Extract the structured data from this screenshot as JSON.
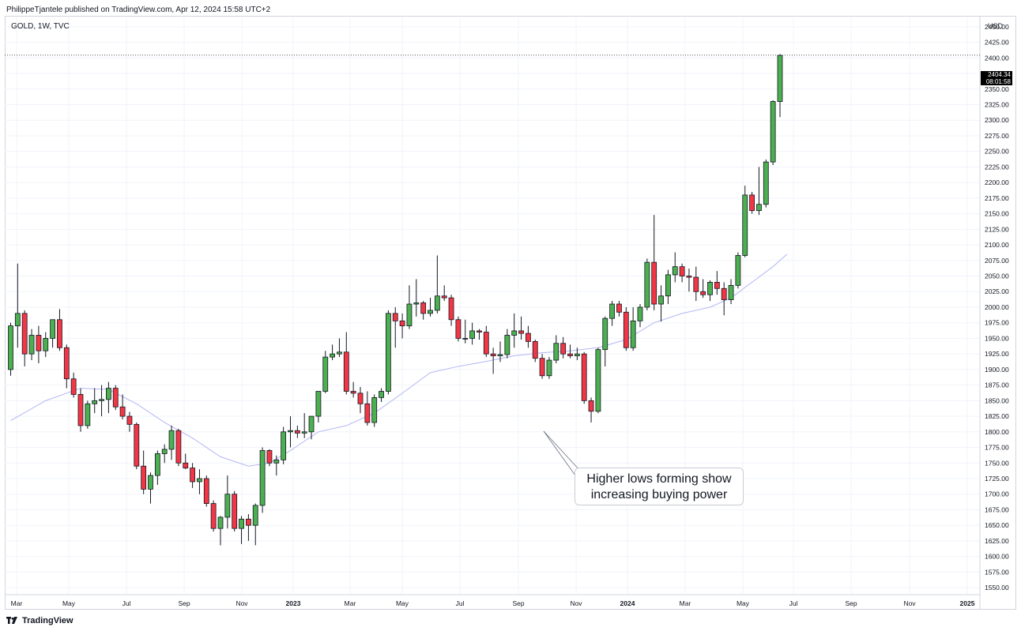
{
  "header": {
    "published": "PhilippeTjantele published on TradingView.com, Apr 12, 2024 15:58 UTC+2",
    "symbol": "GOLD, 1W, TVC",
    "currency": "USD"
  },
  "price_tag": {
    "price": "2404.34",
    "countdown": "08:01:58"
  },
  "annotation": {
    "line1": "Higher lows forming show",
    "line2": "increasing buying power"
  },
  "footer": {
    "brand": "TradingView"
  },
  "colors": {
    "up": "#4caf50",
    "down": "#f23645",
    "wick": "#131722",
    "ma": "#b3b7f5",
    "grid": "#f0f3fa"
  },
  "chart_data": {
    "type": "candlestick",
    "symbol": "GOLD",
    "interval": "1W",
    "source": "TVC",
    "currency": "USD",
    "x_ticks": [
      "Mar",
      "May",
      "Jul",
      "Sep",
      "Nov",
      "2023",
      "Mar",
      "May",
      "Jul",
      "Sep",
      "Nov",
      "2024",
      "Mar",
      "May",
      "Jul",
      "Sep",
      "Nov",
      "2025"
    ],
    "y_ticks": [
      "2450.00",
      "2425.00",
      "2400.00",
      "2375.00",
      "2350.00",
      "2325.00",
      "2300.00",
      "2275.00",
      "2250.00",
      "2225.00",
      "2200.00",
      "2175.00",
      "2150.00",
      "2125.00",
      "2100.00",
      "2075.00",
      "2050.00",
      "2025.00",
      "2000.00",
      "1975.00",
      "1950.00",
      "1925.00",
      "1900.00",
      "1875.00",
      "1850.00",
      "1825.00",
      "1800.00",
      "1775.00",
      "1750.00",
      "1725.00",
      "1700.00",
      "1675.00",
      "1650.00",
      "1625.00",
      "1600.00",
      "1575.00",
      "1550.00"
    ],
    "ylim": [
      1540,
      2465
    ],
    "last_price": 2404.34,
    "candles": [
      {
        "o": 1900,
        "h": 1975,
        "l": 1890,
        "c": 1970
      },
      {
        "o": 1970,
        "h": 2070,
        "l": 1935,
        "c": 1990
      },
      {
        "o": 1990,
        "h": 1995,
        "l": 1905,
        "c": 1925
      },
      {
        "o": 1925,
        "h": 1965,
        "l": 1915,
        "c": 1955
      },
      {
        "o": 1955,
        "h": 1970,
        "l": 1910,
        "c": 1930
      },
      {
        "o": 1930,
        "h": 1960,
        "l": 1920,
        "c": 1950
      },
      {
        "o": 1950,
        "h": 1980,
        "l": 1935,
        "c": 1980
      },
      {
        "o": 1980,
        "h": 1997,
        "l": 1930,
        "c": 1935
      },
      {
        "o": 1935,
        "h": 1940,
        "l": 1870,
        "c": 1885
      },
      {
        "o": 1885,
        "h": 1895,
        "l": 1855,
        "c": 1860
      },
      {
        "o": 1860,
        "h": 1870,
        "l": 1800,
        "c": 1810
      },
      {
        "o": 1810,
        "h": 1850,
        "l": 1805,
        "c": 1845
      },
      {
        "o": 1845,
        "h": 1870,
        "l": 1830,
        "c": 1850
      },
      {
        "o": 1850,
        "h": 1875,
        "l": 1825,
        "c": 1852
      },
      {
        "o": 1852,
        "h": 1880,
        "l": 1830,
        "c": 1870
      },
      {
        "o": 1870,
        "h": 1875,
        "l": 1835,
        "c": 1840
      },
      {
        "o": 1840,
        "h": 1860,
        "l": 1820,
        "c": 1825
      },
      {
        "o": 1825,
        "h": 1832,
        "l": 1800,
        "c": 1812
      },
      {
        "o": 1812,
        "h": 1815,
        "l": 1740,
        "c": 1745
      },
      {
        "o": 1745,
        "h": 1770,
        "l": 1700,
        "c": 1708
      },
      {
        "o": 1708,
        "h": 1735,
        "l": 1685,
        "c": 1730
      },
      {
        "o": 1730,
        "h": 1770,
        "l": 1715,
        "c": 1765
      },
      {
        "o": 1765,
        "h": 1780,
        "l": 1750,
        "c": 1772
      },
      {
        "o": 1772,
        "h": 1810,
        "l": 1755,
        "c": 1802
      },
      {
        "o": 1802,
        "h": 1805,
        "l": 1745,
        "c": 1750
      },
      {
        "o": 1750,
        "h": 1765,
        "l": 1740,
        "c": 1742
      },
      {
        "o": 1742,
        "h": 1750,
        "l": 1710,
        "c": 1720
      },
      {
        "o": 1720,
        "h": 1740,
        "l": 1700,
        "c": 1725
      },
      {
        "o": 1725,
        "h": 1730,
        "l": 1680,
        "c": 1685
      },
      {
        "o": 1685,
        "h": 1690,
        "l": 1640,
        "c": 1645
      },
      {
        "o": 1645,
        "h": 1665,
        "l": 1618,
        "c": 1663
      },
      {
        "o": 1663,
        "h": 1730,
        "l": 1645,
        "c": 1700
      },
      {
        "o": 1700,
        "h": 1705,
        "l": 1640,
        "c": 1645
      },
      {
        "o": 1645,
        "h": 1665,
        "l": 1620,
        "c": 1660
      },
      {
        "o": 1660,
        "h": 1668,
        "l": 1625,
        "c": 1650
      },
      {
        "o": 1650,
        "h": 1685,
        "l": 1618,
        "c": 1682
      },
      {
        "o": 1682,
        "h": 1775,
        "l": 1670,
        "c": 1770
      },
      {
        "o": 1770,
        "h": 1772,
        "l": 1745,
        "c": 1750
      },
      {
        "o": 1750,
        "h": 1762,
        "l": 1730,
        "c": 1755
      },
      {
        "o": 1755,
        "h": 1808,
        "l": 1748,
        "c": 1800
      },
      {
        "o": 1800,
        "h": 1825,
        "l": 1775,
        "c": 1802
      },
      {
        "o": 1802,
        "h": 1810,
        "l": 1790,
        "c": 1798
      },
      {
        "o": 1798,
        "h": 1830,
        "l": 1790,
        "c": 1800
      },
      {
        "o": 1800,
        "h": 1825,
        "l": 1788,
        "c": 1825
      },
      {
        "o": 1825,
        "h": 1865,
        "l": 1815,
        "c": 1865
      },
      {
        "o": 1865,
        "h": 1930,
        "l": 1862,
        "c": 1920
      },
      {
        "o": 1920,
        "h": 1940,
        "l": 1915,
        "c": 1925
      },
      {
        "o": 1925,
        "h": 1950,
        "l": 1920,
        "c": 1928
      },
      {
        "o": 1928,
        "h": 1960,
        "l": 1860,
        "c": 1865
      },
      {
        "o": 1865,
        "h": 1880,
        "l": 1855,
        "c": 1862
      },
      {
        "o": 1862,
        "h": 1872,
        "l": 1830,
        "c": 1845
      },
      {
        "o": 1845,
        "h": 1865,
        "l": 1810,
        "c": 1815
      },
      {
        "o": 1815,
        "h": 1860,
        "l": 1808,
        "c": 1855
      },
      {
        "o": 1855,
        "h": 1870,
        "l": 1848,
        "c": 1865
      },
      {
        "o": 1865,
        "h": 1995,
        "l": 1860,
        "c": 1990
      },
      {
        "o": 1990,
        "h": 2000,
        "l": 1935,
        "c": 1978
      },
      {
        "o": 1978,
        "h": 1990,
        "l": 1950,
        "c": 1970
      },
      {
        "o": 1970,
        "h": 2035,
        "l": 1965,
        "c": 2005
      },
      {
        "o": 2005,
        "h": 2045,
        "l": 1985,
        "c": 2007
      },
      {
        "o": 2007,
        "h": 2010,
        "l": 1980,
        "c": 1990
      },
      {
        "o": 1990,
        "h": 2015,
        "l": 1985,
        "c": 1995
      },
      {
        "o": 1995,
        "h": 2083,
        "l": 1990,
        "c": 2018
      },
      {
        "o": 2018,
        "h": 2035,
        "l": 2010,
        "c": 2015
      },
      {
        "o": 2015,
        "h": 2020,
        "l": 1970,
        "c": 1980
      },
      {
        "o": 1980,
        "h": 1985,
        "l": 1945,
        "c": 1950
      },
      {
        "o": 1950,
        "h": 1980,
        "l": 1942,
        "c": 1950
      },
      {
        "o": 1950,
        "h": 1975,
        "l": 1940,
        "c": 1962
      },
      {
        "o": 1962,
        "h": 1965,
        "l": 1948,
        "c": 1960
      },
      {
        "o": 1960,
        "h": 1970,
        "l": 1920,
        "c": 1925
      },
      {
        "o": 1925,
        "h": 1935,
        "l": 1893,
        "c": 1922
      },
      {
        "o": 1922,
        "h": 1945,
        "l": 1912,
        "c": 1924
      },
      {
        "o": 1924,
        "h": 1965,
        "l": 1918,
        "c": 1955
      },
      {
        "o": 1955,
        "h": 1990,
        "l": 1935,
        "c": 1962
      },
      {
        "o": 1962,
        "h": 1985,
        "l": 1948,
        "c": 1958
      },
      {
        "o": 1958,
        "h": 1970,
        "l": 1935,
        "c": 1945
      },
      {
        "o": 1945,
        "h": 1948,
        "l": 1912,
        "c": 1918
      },
      {
        "o": 1918,
        "h": 1925,
        "l": 1885,
        "c": 1890
      },
      {
        "o": 1890,
        "h": 1920,
        "l": 1885,
        "c": 1915
      },
      {
        "o": 1915,
        "h": 1955,
        "l": 1910,
        "c": 1942
      },
      {
        "o": 1942,
        "h": 1952,
        "l": 1918,
        "c": 1925
      },
      {
        "o": 1925,
        "h": 1940,
        "l": 1918,
        "c": 1922
      },
      {
        "o": 1922,
        "h": 1935,
        "l": 1915,
        "c": 1925
      },
      {
        "o": 1925,
        "h": 1928,
        "l": 1845,
        "c": 1850
      },
      {
        "o": 1850,
        "h": 1855,
        "l": 1815,
        "c": 1833
      },
      {
        "o": 1833,
        "h": 1935,
        "l": 1830,
        "c": 1932
      },
      {
        "o": 1932,
        "h": 1985,
        "l": 1905,
        "c": 1982
      },
      {
        "o": 1982,
        "h": 2010,
        "l": 1970,
        "c": 2005
      },
      {
        "o": 2005,
        "h": 2010,
        "l": 1985,
        "c": 1992
      },
      {
        "o": 1992,
        "h": 2000,
        "l": 1930,
        "c": 1935
      },
      {
        "o": 1935,
        "h": 2000,
        "l": 1930,
        "c": 1978
      },
      {
        "o": 1978,
        "h": 2005,
        "l": 1968,
        "c": 2000
      },
      {
        "o": 2000,
        "h": 2078,
        "l": 1995,
        "c": 2072
      },
      {
        "o": 2072,
        "h": 2148,
        "l": 1995,
        "c": 2005
      },
      {
        "o": 2005,
        "h": 2035,
        "l": 1977,
        "c": 2018
      },
      {
        "o": 2018,
        "h": 2060,
        "l": 2005,
        "c": 2052
      },
      {
        "o": 2052,
        "h": 2088,
        "l": 2040,
        "c": 2065
      },
      {
        "o": 2065,
        "h": 2070,
        "l": 2040,
        "c": 2050
      },
      {
        "o": 2050,
        "h": 2062,
        "l": 2025,
        "c": 2048
      },
      {
        "o": 2048,
        "h": 2065,
        "l": 2010,
        "c": 2025
      },
      {
        "o": 2025,
        "h": 2045,
        "l": 2015,
        "c": 2020
      },
      {
        "o": 2020,
        "h": 2043,
        "l": 2010,
        "c": 2040
      },
      {
        "o": 2040,
        "h": 2058,
        "l": 2020,
        "c": 2030
      },
      {
        "o": 2030,
        "h": 2040,
        "l": 1987,
        "c": 2012
      },
      {
        "o": 2012,
        "h": 2045,
        "l": 2005,
        "c": 2035
      },
      {
        "o": 2035,
        "h": 2088,
        "l": 2030,
        "c": 2083
      },
      {
        "o": 2083,
        "h": 2195,
        "l": 2080,
        "c": 2180
      },
      {
        "o": 2180,
        "h": 2185,
        "l": 2150,
        "c": 2155
      },
      {
        "o": 2155,
        "h": 2225,
        "l": 2148,
        "c": 2165
      },
      {
        "o": 2165,
        "h": 2237,
        "l": 2160,
        "c": 2233
      },
      {
        "o": 2233,
        "h": 2332,
        "l": 2228,
        "c": 2330
      },
      {
        "o": 2330,
        "h": 2406,
        "l": 2305,
        "c": 2404
      }
    ],
    "moving_average": [
      {
        "i": 0,
        "v": 1818
      },
      {
        "i": 5,
        "v": 1850
      },
      {
        "i": 10,
        "v": 1870
      },
      {
        "i": 14,
        "v": 1868
      },
      {
        "i": 18,
        "v": 1845
      },
      {
        "i": 22,
        "v": 1815
      },
      {
        "i": 26,
        "v": 1790
      },
      {
        "i": 30,
        "v": 1760
      },
      {
        "i": 34,
        "v": 1745
      },
      {
        "i": 37,
        "v": 1750
      },
      {
        "i": 40,
        "v": 1770
      },
      {
        "i": 44,
        "v": 1800
      },
      {
        "i": 48,
        "v": 1810
      },
      {
        "i": 52,
        "v": 1830
      },
      {
        "i": 56,
        "v": 1862
      },
      {
        "i": 60,
        "v": 1895
      },
      {
        "i": 64,
        "v": 1905
      },
      {
        "i": 68,
        "v": 1913
      },
      {
        "i": 72,
        "v": 1922
      },
      {
        "i": 76,
        "v": 1927
      },
      {
        "i": 80,
        "v": 1930
      },
      {
        "i": 84,
        "v": 1935
      },
      {
        "i": 88,
        "v": 1948
      },
      {
        "i": 92,
        "v": 1975
      },
      {
        "i": 96,
        "v": 1990
      },
      {
        "i": 100,
        "v": 2000
      },
      {
        "i": 103,
        "v": 2015
      },
      {
        "i": 106,
        "v": 2040
      },
      {
        "i": 109,
        "v": 2065
      },
      {
        "i": 111,
        "v": 2085
      }
    ]
  }
}
